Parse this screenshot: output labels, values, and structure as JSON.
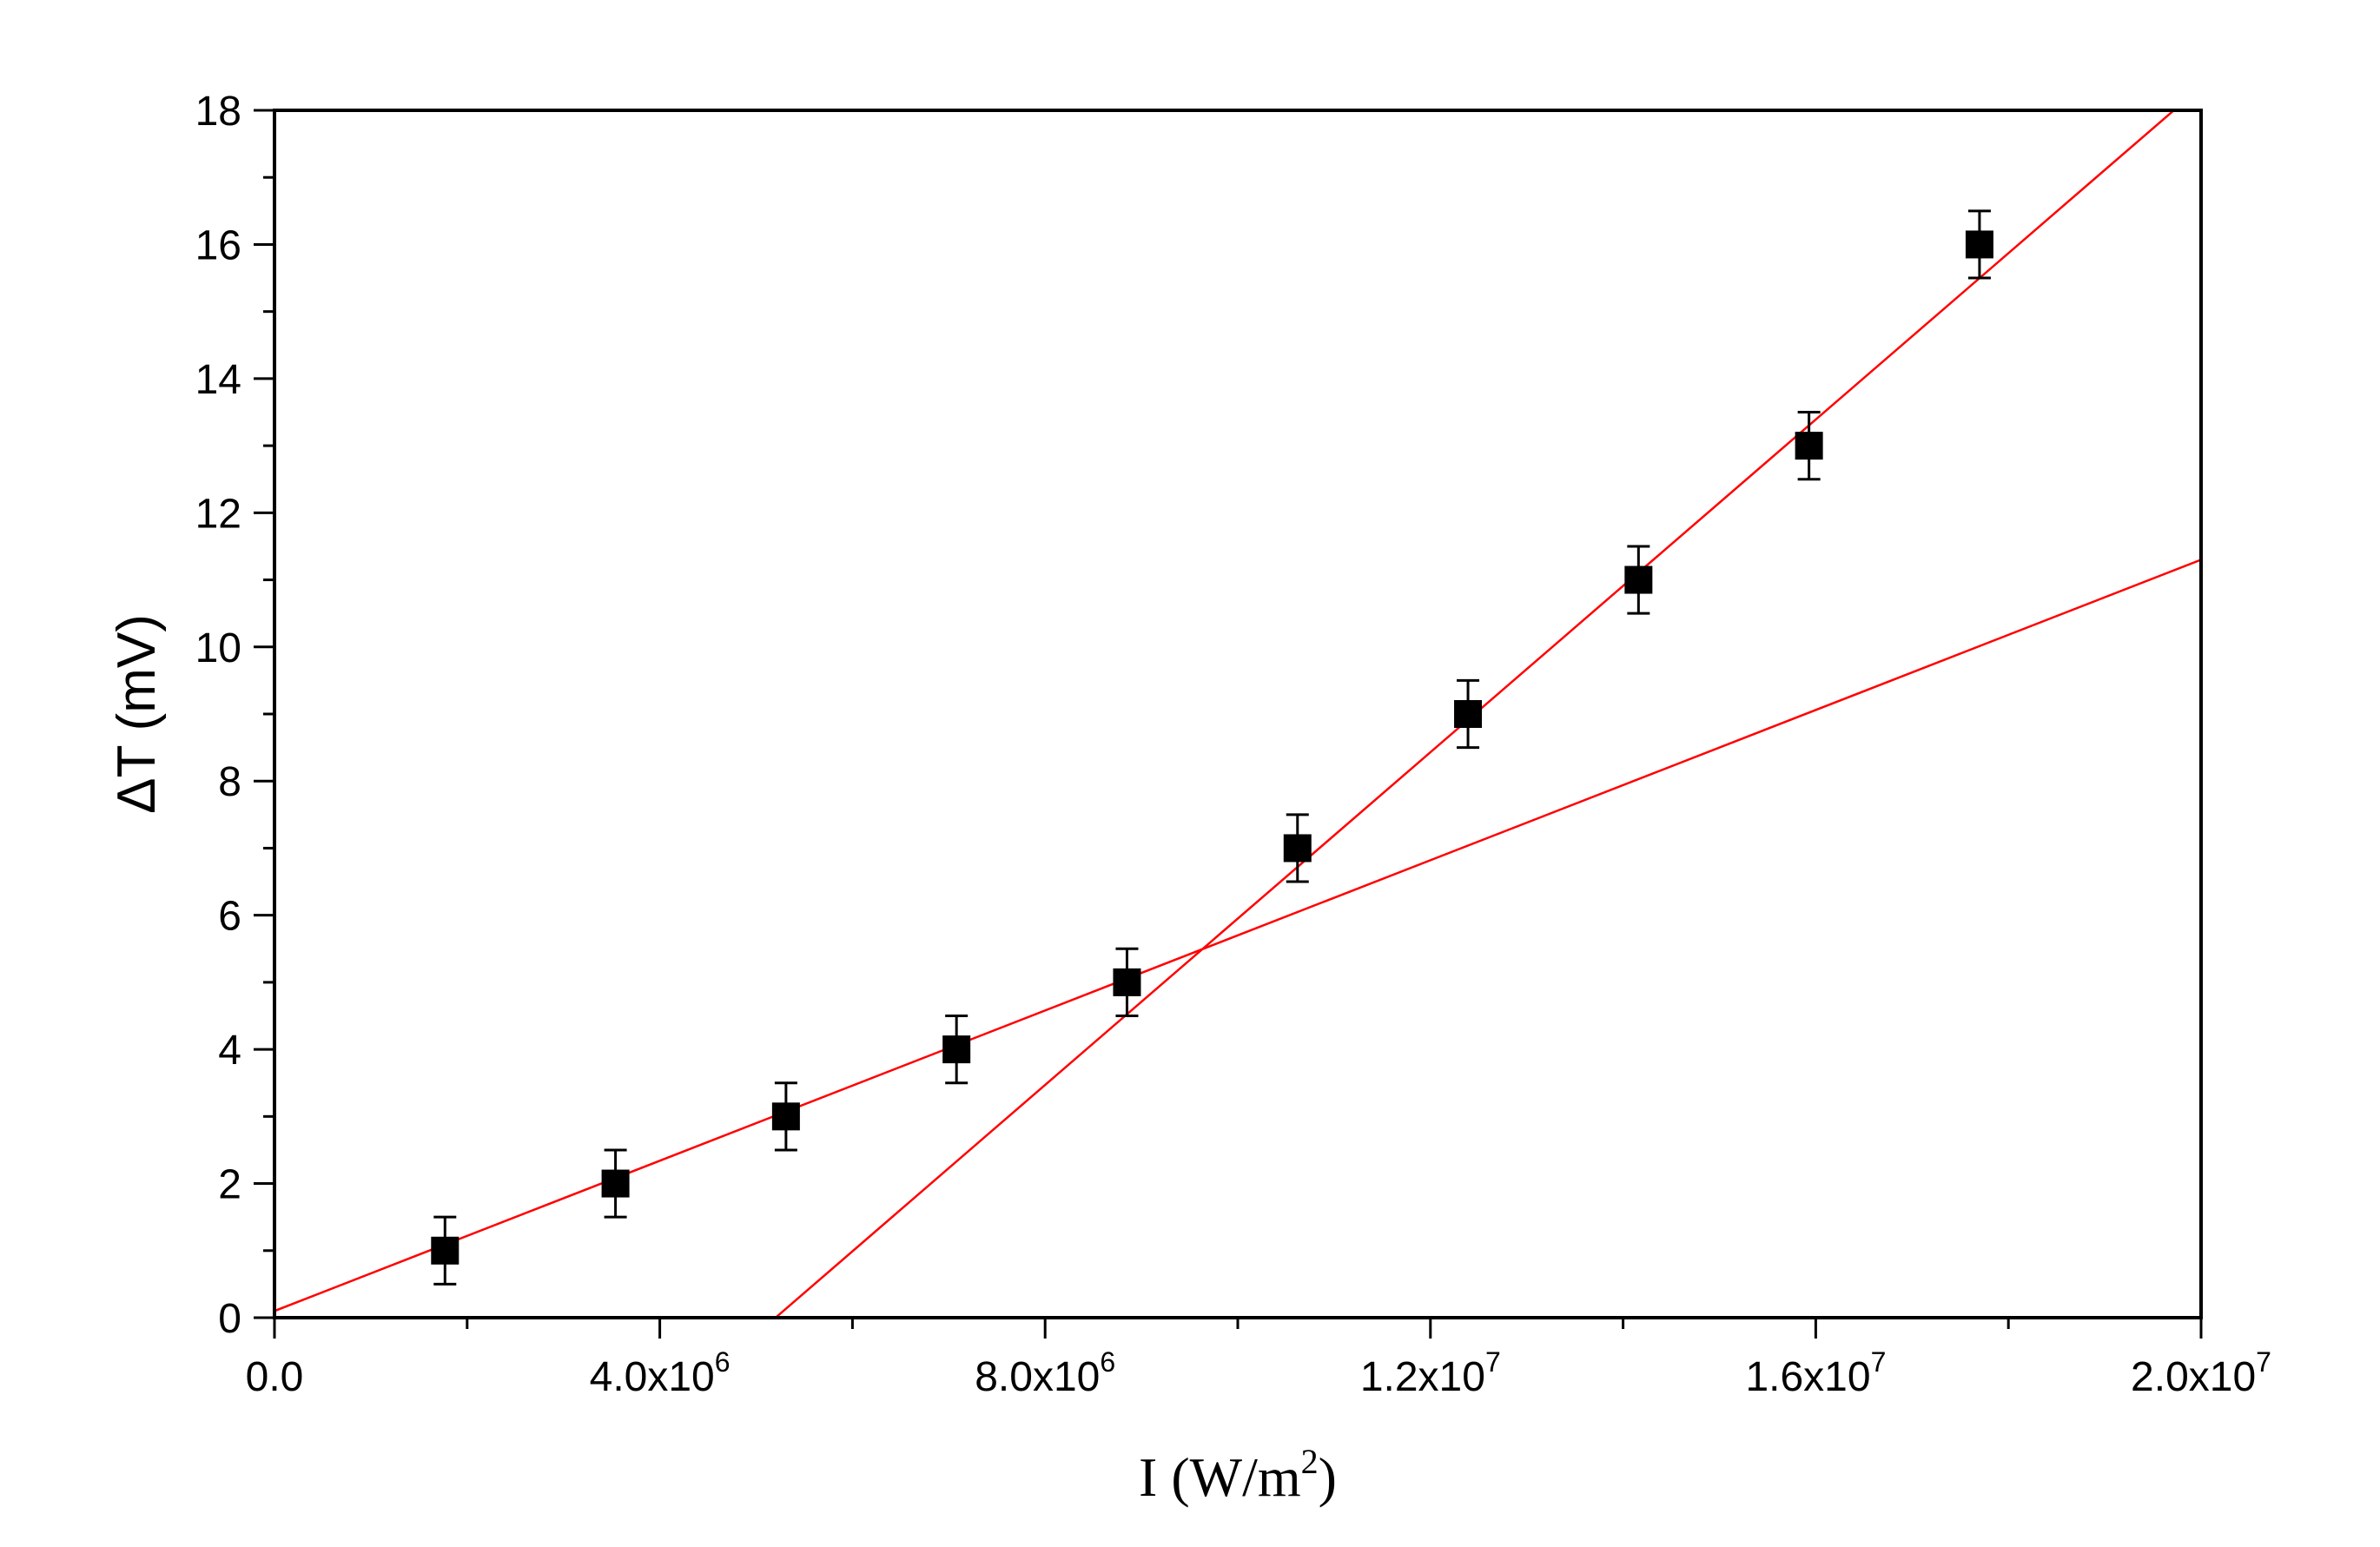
{
  "chart_data": {
    "type": "scatter",
    "title": "",
    "xlabel": {
      "base": "I (W/m",
      "sup": "2",
      "tail": ")"
    },
    "ylabel": "ΔT (mV)",
    "xlim": [
      0,
      20000000
    ],
    "ylim": [
      0,
      18
    ],
    "grid": false,
    "x_ticks": [
      {
        "value": 0,
        "base": "0.0",
        "exp": ""
      },
      {
        "value": 4000000,
        "base": "4.0x10",
        "exp": "6"
      },
      {
        "value": 8000000,
        "base": "8.0x10",
        "exp": "6"
      },
      {
        "value": 12000000,
        "base": "1.2x10",
        "exp": "7"
      },
      {
        "value": 16000000,
        "base": "1.6x10",
        "exp": "7"
      },
      {
        "value": 20000000,
        "base": "2.0x10",
        "exp": "7"
      }
    ],
    "y_ticks": [
      {
        "value": 0,
        "label": "0"
      },
      {
        "value": 2,
        "label": "2"
      },
      {
        "value": 4,
        "label": "4"
      },
      {
        "value": 6,
        "label": "6"
      },
      {
        "value": 8,
        "label": "8"
      },
      {
        "value": 10,
        "label": "10"
      },
      {
        "value": 12,
        "label": "12"
      },
      {
        "value": 14,
        "label": "14"
      },
      {
        "value": 16,
        "label": "16"
      },
      {
        "value": 18,
        "label": "18"
      }
    ],
    "points": {
      "x": [
        1770000,
        3540000,
        5310000,
        7080000,
        8850000,
        10620000,
        12390000,
        14160000,
        15930000,
        17700000
      ],
      "y": [
        1,
        2,
        3,
        4,
        5,
        7,
        9,
        11,
        13,
        16
      ],
      "error": [
        0.5,
        0.5,
        0.5,
        0.5,
        0.5,
        0.5,
        0.5,
        0.5,
        0.5,
        0.5
      ],
      "color": "#000000"
    },
    "fit_lines": [
      {
        "slope": 5.6e-07,
        "intercept": 0.1,
        "x_range": [
          0,
          20000000
        ],
        "color": "#ff0000"
      },
      {
        "slope": 1.24e-06,
        "intercept": -6.45,
        "x_range": [
          5200000,
          20000000
        ],
        "color": "#ff0000"
      }
    ]
  }
}
